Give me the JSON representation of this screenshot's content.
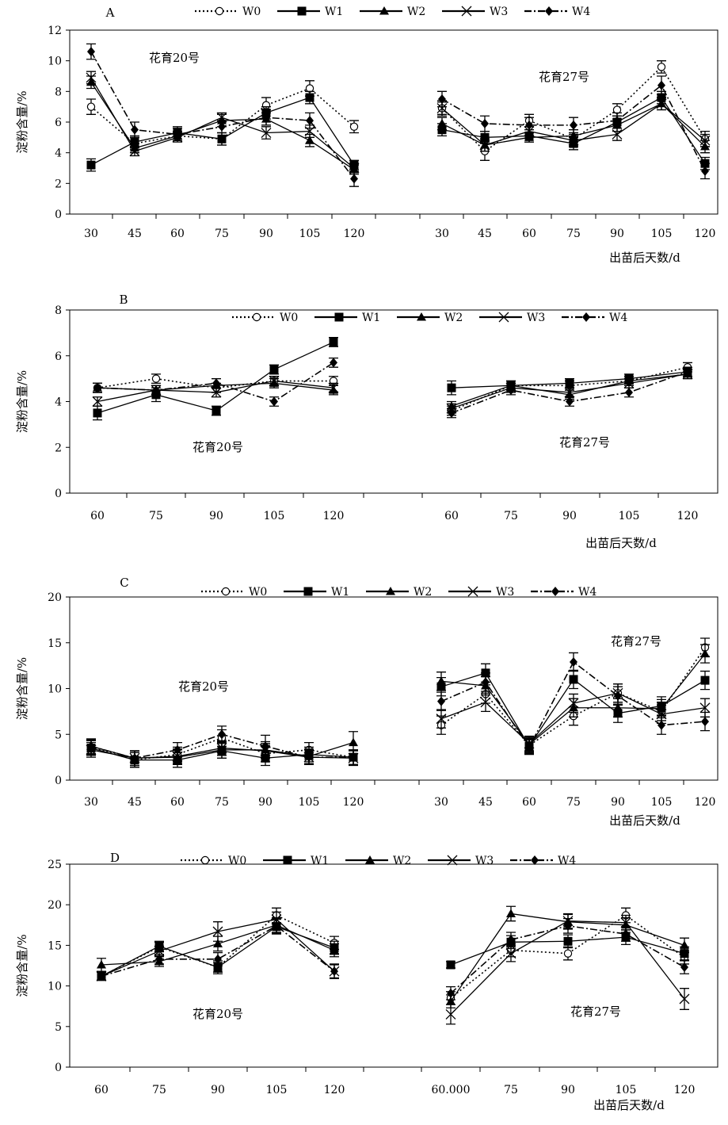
{
  "legend": {
    "items": [
      {
        "name": "W0",
        "marker": "open-circle",
        "dash": "dot"
      },
      {
        "name": "W1",
        "marker": "square",
        "dash": "solid"
      },
      {
        "name": "W2",
        "marker": "triangle",
        "dash": "solid"
      },
      {
        "name": "W3",
        "marker": "x",
        "dash": "solid"
      },
      {
        "name": "W4",
        "marker": "diamond",
        "dash": "dashdot"
      }
    ]
  },
  "chart_data": [
    {
      "type": "line",
      "panel_label": "A",
      "ylabel": "淀粉含量/%",
      "xlabel": "出苗后天数/d",
      "ylim": [
        0,
        12
      ],
      "yticks": [
        0,
        2,
        4,
        6,
        8,
        10,
        12
      ],
      "groups": [
        {
          "name": "花育20号",
          "x": [
            "30",
            "45",
            "60",
            "75",
            "90",
            "105",
            "120"
          ],
          "series": [
            {
              "name": "W0",
              "values": [
                7.0,
                4.6,
                5.1,
                4.9,
                7.1,
                8.2,
                5.7
              ],
              "errors": [
                0.5,
                0.4,
                0.3,
                0.4,
                0.5,
                0.5,
                0.4
              ]
            },
            {
              "name": "W1",
              "values": [
                3.2,
                4.7,
                5.3,
                4.9,
                6.6,
                7.6,
                3.2
              ],
              "errors": [
                0.4,
                0.4,
                0.4,
                0.4,
                0.4,
                0.4,
                0.3
              ]
            },
            {
              "name": "W2",
              "values": [
                8.6,
                4.3,
                5.1,
                6.1,
                6.2,
                4.8,
                2.9
              ],
              "errors": [
                0.4,
                0.3,
                0.3,
                0.4,
                0.4,
                0.4,
                0.3
              ]
            },
            {
              "name": "W3",
              "values": [
                8.9,
                4.1,
                5.0,
                6.3,
                5.3,
                5.4,
                3.0
              ],
              "errors": [
                0.4,
                0.3,
                0.3,
                0.3,
                0.4,
                0.4,
                0.3
              ]
            },
            {
              "name": "W4",
              "values": [
                10.6,
                5.5,
                5.2,
                5.7,
                6.3,
                6.1,
                2.3
              ],
              "errors": [
                0.5,
                0.5,
                0.4,
                0.4,
                0.5,
                0.5,
                0.5
              ]
            }
          ]
        },
        {
          "name": "花育27号",
          "x": [
            "30",
            "45",
            "60",
            "75",
            "90",
            "105",
            "120"
          ],
          "series": [
            {
              "name": "W0",
              "values": [
                6.9,
                4.1,
                6.1,
                4.9,
                6.8,
                9.6,
                4.9
              ],
              "errors": [
                0.5,
                0.6,
                0.4,
                0.4,
                0.4,
                0.4,
                0.5
              ]
            },
            {
              "name": "W1",
              "values": [
                5.5,
                5.0,
                5.1,
                4.6,
                6.0,
                7.6,
                3.3
              ],
              "errors": [
                0.4,
                0.4,
                0.4,
                0.4,
                0.4,
                0.4,
                0.4
              ]
            },
            {
              "name": "W2",
              "values": [
                5.9,
                4.5,
                5.0,
                5.1,
                5.8,
                7.2,
                4.4
              ],
              "errors": [
                0.4,
                0.4,
                0.3,
                0.4,
                0.4,
                0.4,
                0.4
              ]
            },
            {
              "name": "W3",
              "values": [
                6.9,
                4.5,
                5.4,
                4.8,
                5.2,
                7.2,
                4.8
              ],
              "errors": [
                0.4,
                0.4,
                0.3,
                0.4,
                0.4,
                0.4,
                0.4
              ]
            },
            {
              "name": "W4",
              "values": [
                7.5,
                5.9,
                5.8,
                5.8,
                6.1,
                8.4,
                2.8
              ],
              "errors": [
                0.5,
                0.5,
                0.5,
                0.5,
                0.5,
                0.6,
                0.5
              ]
            }
          ]
        }
      ]
    },
    {
      "type": "line",
      "panel_label": "B",
      "ylabel": "淀粉含量/%",
      "xlabel": "出苗后天数/d",
      "ylim": [
        0,
        8
      ],
      "yticks": [
        0,
        2,
        4,
        6,
        8
      ],
      "groups": [
        {
          "name": "花育20号",
          "x": [
            "60",
            "75",
            "90",
            "105",
            "120"
          ],
          "series": [
            {
              "name": "W0",
              "values": [
                4.6,
                5.0,
                4.6,
                4.9,
                4.9
              ],
              "errors": [
                0.2,
                0.2,
                0.2,
                0.2,
                0.2
              ]
            },
            {
              "name": "W1",
              "values": [
                3.5,
                4.3,
                3.6,
                5.4,
                6.6
              ],
              "errors": [
                0.3,
                0.3,
                0.2,
                0.2,
                0.2
              ]
            },
            {
              "name": "W2",
              "values": [
                4.6,
                4.5,
                4.7,
                4.8,
                4.5
              ],
              "errors": [
                0.2,
                0.2,
                0.3,
                0.2,
                0.2
              ]
            },
            {
              "name": "W3",
              "values": [
                4.0,
                4.5,
                4.4,
                4.9,
                4.6
              ],
              "errors": [
                0.2,
                0.2,
                0.2,
                0.2,
                0.2
              ]
            },
            {
              "name": "W4",
              "values": [
                4.6,
                4.5,
                4.8,
                4.0,
                5.7
              ],
              "errors": [
                0.2,
                0.2,
                0.2,
                0.2,
                0.2
              ]
            }
          ]
        },
        {
          "name": "花育27号",
          "x": [
            "60",
            "75",
            "90",
            "105",
            "120"
          ],
          "series": [
            {
              "name": "W0",
              "values": [
                3.6,
                4.7,
                4.7,
                4.9,
                5.5
              ],
              "errors": [
                0.2,
                0.2,
                0.2,
                0.2,
                0.2
              ]
            },
            {
              "name": "W1",
              "values": [
                4.6,
                4.7,
                4.8,
                5.0,
                5.3
              ],
              "errors": [
                0.3,
                0.2,
                0.2,
                0.2,
                0.2
              ]
            },
            {
              "name": "W2",
              "values": [
                3.8,
                4.7,
                4.3,
                4.9,
                5.2
              ],
              "errors": [
                0.2,
                0.2,
                0.2,
                0.2,
                0.2
              ]
            },
            {
              "name": "W3",
              "values": [
                3.7,
                4.6,
                4.4,
                4.8,
                5.2
              ],
              "errors": [
                0.2,
                0.2,
                0.2,
                0.2,
                0.2
              ]
            },
            {
              "name": "W4",
              "values": [
                3.5,
                4.5,
                4.0,
                4.4,
                5.3
              ],
              "errors": [
                0.2,
                0.2,
                0.2,
                0.2,
                0.2
              ]
            }
          ]
        }
      ]
    },
    {
      "type": "line",
      "panel_label": "C",
      "ylabel": "淀粉含量/%",
      "xlabel": "出苗后天数/d",
      "ylim": [
        0,
        20
      ],
      "yticks": [
        0,
        5,
        10,
        15,
        20
      ],
      "groups": [
        {
          "name": "花育20号",
          "x": [
            "30",
            "45",
            "60",
            "75",
            "90",
            "105",
            "120"
          ],
          "series": [
            {
              "name": "W0",
              "values": [
                3.6,
                2.2,
                2.8,
                4.6,
                2.9,
                3.3,
                2.5
              ],
              "errors": [
                0.8,
                0.8,
                0.8,
                0.9,
                0.9,
                0.8,
                0.8
              ]
            },
            {
              "name": "W1",
              "values": [
                3.5,
                2.2,
                2.2,
                3.2,
                2.4,
                2.8,
                2.5
              ],
              "errors": [
                0.8,
                0.8,
                0.8,
                0.8,
                0.8,
                0.8,
                0.8
              ]
            },
            {
              "name": "W2",
              "values": [
                3.7,
                2.4,
                2.5,
                3.3,
                3.3,
                2.6,
                4.1
              ],
              "errors": [
                0.8,
                0.8,
                0.8,
                0.9,
                0.9,
                0.8,
                1.2
              ]
            },
            {
              "name": "W3",
              "values": [
                3.3,
                2.4,
                2.6,
                3.5,
                3.2,
                2.5,
                2.4
              ],
              "errors": [
                0.8,
                0.8,
                0.8,
                0.8,
                0.8,
                0.8,
                0.8
              ]
            },
            {
              "name": "W4",
              "values": [
                3.7,
                2.4,
                3.3,
                5.0,
                3.7,
                2.5,
                2.5
              ],
              "errors": [
                0.8,
                0.8,
                0.8,
                0.9,
                1.2,
                0.8,
                0.8
              ]
            }
          ]
        },
        {
          "name": "花育27号",
          "x": [
            "30",
            "45",
            "60",
            "75",
            "90",
            "105",
            "120"
          ],
          "series": [
            {
              "name": "W0",
              "values": [
                6.0,
                9.4,
                3.8,
                7.0,
                9.5,
                7.5,
                14.5
              ],
              "errors": [
                1.0,
                1.0,
                0.8,
                1.0,
                1.0,
                1.0,
                1.0
              ]
            },
            {
              "name": "W1",
              "values": [
                10.2,
                11.7,
                3.7,
                11.0,
                7.3,
                8.1,
                10.9
              ],
              "errors": [
                1.0,
                1.0,
                0.8,
                1.0,
                1.0,
                1.0,
                1.0
              ]
            },
            {
              "name": "W2",
              "values": [
                10.8,
                10.3,
                3.9,
                7.9,
                7.9,
                7.8,
                13.8
              ],
              "errors": [
                1.0,
                1.0,
                0.8,
                1.0,
                1.0,
                1.0,
                1.0
              ]
            },
            {
              "name": "W3",
              "values": [
                6.7,
                8.5,
                4.0,
                8.4,
                9.5,
                7.2,
                7.9
              ],
              "errors": [
                1.0,
                1.0,
                0.8,
                1.0,
                1.0,
                1.0,
                1.0
              ]
            },
            {
              "name": "W4",
              "values": [
                8.6,
                10.7,
                3.6,
                12.9,
                9.2,
                6.0,
                6.4
              ],
              "errors": [
                1.0,
                1.0,
                0.8,
                1.0,
                1.0,
                1.0,
                1.0
              ]
            }
          ]
        }
      ]
    },
    {
      "type": "line",
      "panel_label": "D",
      "ylabel": "淀粉含量/%",
      "xlabel": "出苗后天数/d",
      "ylim": [
        0,
        25
      ],
      "yticks": [
        0,
        5,
        10,
        15,
        20,
        25
      ],
      "groups": [
        {
          "name": "花育20号",
          "x": [
            "60",
            "75",
            "90",
            "105",
            "120"
          ],
          "series": [
            {
              "name": "W0",
              "values": [
                11.2,
                14.8,
                12.3,
                18.7,
                15.3
              ],
              "errors": [
                0.5,
                0.6,
                0.8,
                0.9,
                0.8
              ]
            },
            {
              "name": "W1",
              "values": [
                11.2,
                14.9,
                12.3,
                17.3,
                14.7
              ],
              "errors": [
                0.5,
                0.6,
                0.6,
                0.9,
                0.8
              ]
            },
            {
              "name": "W2",
              "values": [
                12.6,
                13.0,
                15.2,
                17.5,
                14.4
              ],
              "errors": [
                0.8,
                0.6,
                0.9,
                0.9,
                0.8
              ]
            },
            {
              "name": "W3",
              "values": [
                11.2,
                14.3,
                16.7,
                18.2,
                11.8
              ],
              "errors": [
                0.5,
                0.6,
                1.2,
                0.9,
                0.8
              ]
            },
            {
              "name": "W4",
              "values": [
                11.2,
                13.3,
                13.3,
                17.4,
                11.8
              ],
              "errors": [
                0.5,
                0.6,
                0.8,
                0.9,
                0.9
              ]
            }
          ]
        },
        {
          "name": "花育27号",
          "x": [
            "60.000",
            "75",
            "90",
            "105",
            "120"
          ],
          "series": [
            {
              "name": "W0",
              "values": [
                8.5,
                14.4,
                14.0,
                18.7,
                13.5
              ],
              "errors": [
                0.8,
                0.8,
                0.8,
                0.9,
                0.8
              ]
            },
            {
              "name": "W1",
              "values": [
                12.6,
                15.4,
                15.5,
                16.0,
                14.0
              ],
              "errors": [
                0.4,
                0.8,
                0.8,
                0.9,
                0.8
              ]
            },
            {
              "name": "W2",
              "values": [
                8.1,
                18.9,
                17.9,
                17.5,
                15.0
              ],
              "errors": [
                0.8,
                0.9,
                0.9,
                0.9,
                0.9
              ]
            },
            {
              "name": "W3",
              "values": [
                6.5,
                14.0,
                18.0,
                17.8,
                8.4
              ],
              "errors": [
                1.2,
                1.0,
                0.9,
                0.9,
                1.3
              ]
            },
            {
              "name": "W4",
              "values": [
                9.1,
                15.7,
                17.4,
                16.4,
                12.3
              ],
              "errors": [
                0.8,
                0.9,
                0.9,
                0.9,
                0.8
              ]
            }
          ]
        }
      ]
    }
  ]
}
